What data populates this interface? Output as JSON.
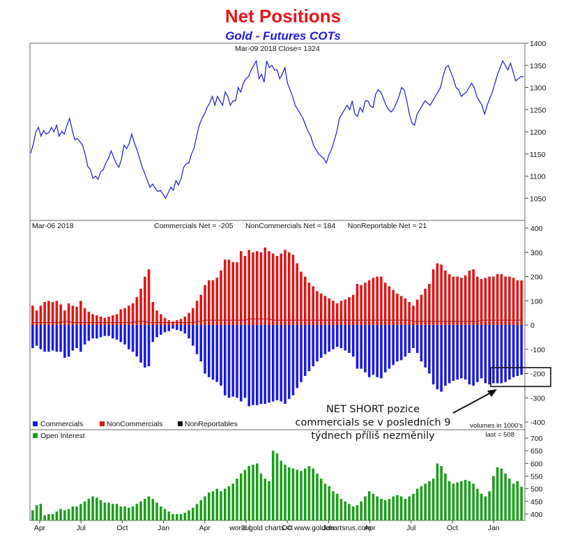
{
  "header": {
    "title": "Net Positions",
    "subtitle": "Gold - Futures COTs"
  },
  "footer": {
    "credit": "world gold charts © www.goldchartsrus.com"
  },
  "annotation": {
    "lines": [
      "NET SHORT pozice",
      "commercials se v posledních 9",
      "týdnech příliš nezměnily"
    ]
  },
  "colors": {
    "price_line": "#1a1acc",
    "commercials": "#1a1ae0",
    "noncommercials": "#e01515",
    "nonreportables": "#111111",
    "open_interest": "#1a9e1a",
    "title": "#e8141b",
    "subtitle": "#1a1ae0"
  },
  "chart_data": [
    {
      "type": "line",
      "panel": "price",
      "header_text": "Mar-09  2018   Close= 1324",
      "ylim": [
        1000,
        1400
      ],
      "yticks": [
        1050,
        1100,
        1150,
        1200,
        1250,
        1300,
        1350,
        1400
      ],
      "grid": false,
      "series": [
        {
          "values": [
            1152,
            1172,
            1200,
            1210,
            1190,
            1203,
            1195,
            1198,
            1210,
            1200,
            1215,
            1190,
            1201,
            1195,
            1215,
            1230,
            1205,
            1182,
            1185,
            1178,
            1170,
            1150,
            1122,
            1115,
            1095,
            1100,
            1093,
            1110,
            1115,
            1130,
            1140,
            1157,
            1143,
            1128,
            1120,
            1138,
            1170,
            1162,
            1174,
            1195,
            1175,
            1159,
            1140,
            1120,
            1106,
            1090,
            1075,
            1082,
            1073,
            1065,
            1068,
            1060,
            1050,
            1062,
            1075,
            1068,
            1090,
            1080,
            1095,
            1120,
            1128,
            1130,
            1150,
            1163,
            1190,
            1215,
            1230,
            1240,
            1255,
            1265,
            1280,
            1260,
            1280,
            1270,
            1260,
            1290,
            1280,
            1260,
            1270,
            1270,
            1300,
            1290,
            1310,
            1320,
            1325,
            1340,
            1350,
            1360,
            1320,
            1330,
            1312,
            1360,
            1345,
            1350,
            1340,
            1340,
            1320,
            1330,
            1345,
            1310,
            1295,
            1280,
            1260,
            1250,
            1240,
            1230,
            1215,
            1200,
            1190,
            1170,
            1160,
            1150,
            1145,
            1140,
            1130,
            1148,
            1160,
            1180,
            1200,
            1230,
            1240,
            1250,
            1260,
            1250,
            1270,
            1240,
            1235,
            1255,
            1245,
            1270,
            1270,
            1258,
            1255,
            1285,
            1295,
            1290,
            1275,
            1260,
            1250,
            1245,
            1252,
            1265,
            1280,
            1300,
            1295,
            1270,
            1240,
            1220,
            1215,
            1240,
            1250,
            1260,
            1270,
            1265,
            1260,
            1270,
            1280,
            1290,
            1300,
            1325,
            1345,
            1350,
            1335,
            1320,
            1300,
            1295,
            1280,
            1285,
            1290,
            1300,
            1310,
            1300,
            1280,
            1270,
            1260,
            1240,
            1260,
            1275,
            1290,
            1310,
            1330,
            1345,
            1360,
            1350,
            1340,
            1355,
            1335,
            1315,
            1320,
            1325,
            1324
          ]
        }
      ]
    },
    {
      "type": "bar",
      "panel": "net_positions",
      "header_left": "Mar-06  2018",
      "header_mid": "Commercials Net = -205      NonCommercials Net = 184      NonReportable Net = 21",
      "ylim": [
        -400,
        400
      ],
      "yticks": [
        -400,
        -300,
        -200,
        -100,
        0,
        100,
        200,
        300,
        400
      ],
      "legend": [
        "Commercials",
        "NonCommercials",
        "NonReportables"
      ],
      "legend_position": "bottom-left",
      "volume_note": "volumes in 1000's",
      "grid": false,
      "series": [
        {
          "name": "NonCommercials",
          "values": [
            80,
            60,
            80,
            95,
            100,
            95,
            100,
            85,
            60,
            90,
            80,
            75,
            100,
            70,
            55,
            45,
            40,
            35,
            30,
            35,
            40,
            45,
            65,
            70,
            80,
            90,
            115,
            150,
            200,
            230,
            95,
            60,
            45,
            30,
            20,
            15,
            20,
            25,
            35,
            50,
            70,
            100,
            125,
            165,
            185,
            185,
            195,
            225,
            270,
            270,
            260,
            260,
            305,
            285,
            310,
            300,
            305,
            300,
            320,
            305,
            295,
            285,
            295,
            310,
            300,
            290,
            255,
            220,
            200,
            175,
            160,
            140,
            130,
            120,
            110,
            100,
            90,
            100,
            105,
            115,
            125,
            170,
            165,
            175,
            185,
            195,
            200,
            200,
            175,
            160,
            145,
            130,
            120,
            110,
            95,
            80,
            105,
            125,
            150,
            170,
            230,
            255,
            250,
            225,
            210,
            200,
            200,
            195,
            205,
            225,
            230,
            200,
            190,
            195,
            200,
            200,
            210,
            210,
            200,
            200,
            195,
            185,
            184
          ]
        },
        {
          "name": "Commercials",
          "values": [
            -95,
            -85,
            -100,
            -110,
            -110,
            -105,
            -110,
            -110,
            -135,
            -130,
            -105,
            -95,
            -110,
            -80,
            -65,
            -55,
            -55,
            -50,
            -45,
            -45,
            -55,
            -60,
            -70,
            -80,
            -100,
            -110,
            -130,
            -155,
            -175,
            -170,
            -70,
            -50,
            -40,
            -30,
            -25,
            -15,
            -20,
            -25,
            -35,
            -55,
            -85,
            -120,
            -150,
            -200,
            -215,
            -225,
            -235,
            -250,
            -290,
            -300,
            -295,
            -300,
            -315,
            -300,
            -335,
            -330,
            -330,
            -325,
            -325,
            -320,
            -315,
            -310,
            -315,
            -325,
            -305,
            -290,
            -260,
            -235,
            -210,
            -190,
            -170,
            -150,
            -135,
            -120,
            -110,
            -100,
            -90,
            -95,
            -105,
            -115,
            -130,
            -180,
            -180,
            -195,
            -215,
            -205,
            -215,
            -220,
            -195,
            -180,
            -165,
            -150,
            -145,
            -130,
            -115,
            -95,
            -115,
            -150,
            -175,
            -200,
            -245,
            -265,
            -275,
            -250,
            -240,
            -230,
            -225,
            -220,
            -225,
            -245,
            -250,
            -235,
            -220,
            -240,
            -245,
            -240,
            -240,
            -240,
            -235,
            -225,
            -215,
            -210,
            -205
          ]
        },
        {
          "name": "NonReportables",
          "values": [
            10,
            10,
            10,
            10,
            10,
            10,
            10,
            10,
            15,
            15,
            10,
            10,
            10,
            10,
            10,
            10,
            10,
            10,
            10,
            10,
            10,
            10,
            10,
            10,
            10,
            10,
            15,
            15,
            15,
            10,
            10,
            10,
            10,
            10,
            10,
            10,
            10,
            10,
            10,
            10,
            10,
            15,
            15,
            20,
            20,
            20,
            20,
            20,
            20,
            20,
            20,
            20,
            20,
            20,
            25,
            25,
            25,
            25,
            25,
            25,
            20,
            20,
            20,
            20,
            20,
            20,
            20,
            20,
            20,
            20,
            20,
            20,
            20,
            20,
            20,
            20,
            20,
            20,
            20,
            20,
            20,
            20,
            20,
            20,
            20,
            20,
            20,
            20,
            20,
            20,
            20,
            20,
            20,
            20,
            20,
            15,
            15,
            15,
            15,
            15,
            15,
            15,
            15,
            15,
            15,
            15,
            15,
            15,
            15,
            15,
            15,
            15,
            20,
            20,
            20,
            20,
            20,
            20,
            20,
            20,
            20,
            20,
            21
          ]
        }
      ]
    },
    {
      "type": "bar",
      "panel": "open_interest",
      "ylim": [
        375,
        725
      ],
      "yticks": [
        400,
        450,
        500,
        550,
        600,
        650,
        700
      ],
      "legend": [
        "Open Interest"
      ],
      "legend_position": "top-left",
      "last_note": "last = 508",
      "x_month_labels": [
        "Apr",
        "Jul",
        "Oct",
        "Jan",
        "Apr",
        "Jul",
        "Oct",
        "Jan",
        "Apr",
        "Jul",
        "Oct",
        "Jan"
      ],
      "grid": false,
      "series": [
        {
          "name": "Open Interest",
          "values": [
            415,
            435,
            440,
            395,
            400,
            400,
            410,
            420,
            415,
            420,
            430,
            430,
            440,
            450,
            460,
            470,
            465,
            455,
            445,
            445,
            440,
            440,
            430,
            430,
            425,
            430,
            440,
            450,
            460,
            470,
            460,
            445,
            430,
            420,
            410,
            400,
            400,
            400,
            405,
            415,
            425,
            440,
            455,
            470,
            485,
            490,
            500,
            490,
            500,
            510,
            520,
            540,
            560,
            575,
            590,
            595,
            600,
            560,
            540,
            530,
            650,
            640,
            610,
            595,
            585,
            580,
            575,
            570,
            580,
            590,
            580,
            560,
            540,
            520,
            510,
            490,
            480,
            460,
            450,
            440,
            430,
            435,
            450,
            470,
            490,
            480,
            470,
            460,
            455,
            460,
            470,
            475,
            470,
            460,
            470,
            480,
            500,
            510,
            520,
            530,
            540,
            600,
            590,
            560,
            530,
            520,
            525,
            530,
            535,
            530,
            520,
            500,
            480,
            470,
            490,
            550,
            585,
            580,
            560,
            540,
            520,
            530,
            508
          ]
        }
      ]
    }
  ]
}
